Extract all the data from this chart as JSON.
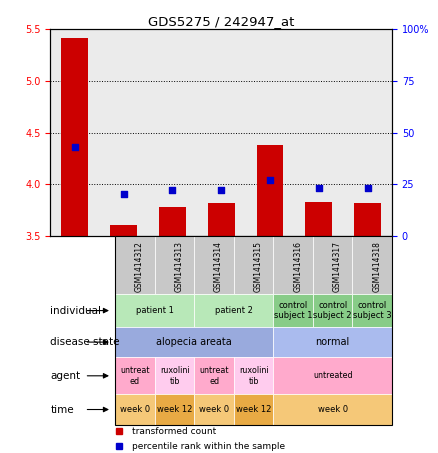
{
  "title": "GDS5275 / 242947_at",
  "samples": [
    "GSM1414312",
    "GSM1414313",
    "GSM1414314",
    "GSM1414315",
    "GSM1414316",
    "GSM1414317",
    "GSM1414318"
  ],
  "transformed_count": [
    5.42,
    3.6,
    3.78,
    3.82,
    4.38,
    3.83,
    3.82
  ],
  "percentile_rank": [
    43,
    20,
    22,
    22,
    27,
    23,
    23
  ],
  "ylim_left": [
    3.5,
    5.5
  ],
  "ylim_right": [
    0,
    100
  ],
  "yticks_left": [
    3.5,
    4.0,
    4.5,
    5.0,
    5.5
  ],
  "yticks_right": [
    0,
    25,
    50,
    75,
    100
  ],
  "ytick_labels_right": [
    "0",
    "25",
    "50",
    "75",
    "100%"
  ],
  "bar_color": "#cc0000",
  "dot_color": "#0000cc",
  "background_color": "#ffffff",
  "sample_bg_color": "#c8c8c8",
  "individual_data": [
    {
      "label": "patient 1",
      "span": [
        0,
        1
      ],
      "color": "#b8e8b8"
    },
    {
      "label": "patient 2",
      "span": [
        2,
        3
      ],
      "color": "#b8e8b8"
    },
    {
      "label": "control\nsubject 1",
      "span": [
        4,
        4
      ],
      "color": "#88cc88"
    },
    {
      "label": "control\nsubject 2",
      "span": [
        5,
        5
      ],
      "color": "#88cc88"
    },
    {
      "label": "control\nsubject 3",
      "span": [
        6,
        6
      ],
      "color": "#88cc88"
    }
  ],
  "disease_data": [
    {
      "label": "alopecia areata",
      "span": [
        0,
        3
      ],
      "color": "#99aadd"
    },
    {
      "label": "normal",
      "span": [
        4,
        6
      ],
      "color": "#aabbee"
    }
  ],
  "agent_data": [
    {
      "label": "untreat\ned",
      "span": [
        0,
        0
      ],
      "color": "#ffaacc"
    },
    {
      "label": "ruxolini\ntib",
      "span": [
        1,
        1
      ],
      "color": "#ffccee"
    },
    {
      "label": "untreat\ned",
      "span": [
        2,
        2
      ],
      "color": "#ffaacc"
    },
    {
      "label": "ruxolini\ntib",
      "span": [
        3,
        3
      ],
      "color": "#ffccee"
    },
    {
      "label": "untreated",
      "span": [
        4,
        6
      ],
      "color": "#ffaacc"
    }
  ],
  "time_data": [
    {
      "label": "week 0",
      "span": [
        0,
        0
      ],
      "color": "#f5c878"
    },
    {
      "label": "week 12",
      "span": [
        1,
        1
      ],
      "color": "#e8aa44"
    },
    {
      "label": "week 0",
      "span": [
        2,
        2
      ],
      "color": "#f5c878"
    },
    {
      "label": "week 12",
      "span": [
        3,
        3
      ],
      "color": "#e8aa44"
    },
    {
      "label": "week 0",
      "span": [
        4,
        6
      ],
      "color": "#f5c878"
    }
  ]
}
